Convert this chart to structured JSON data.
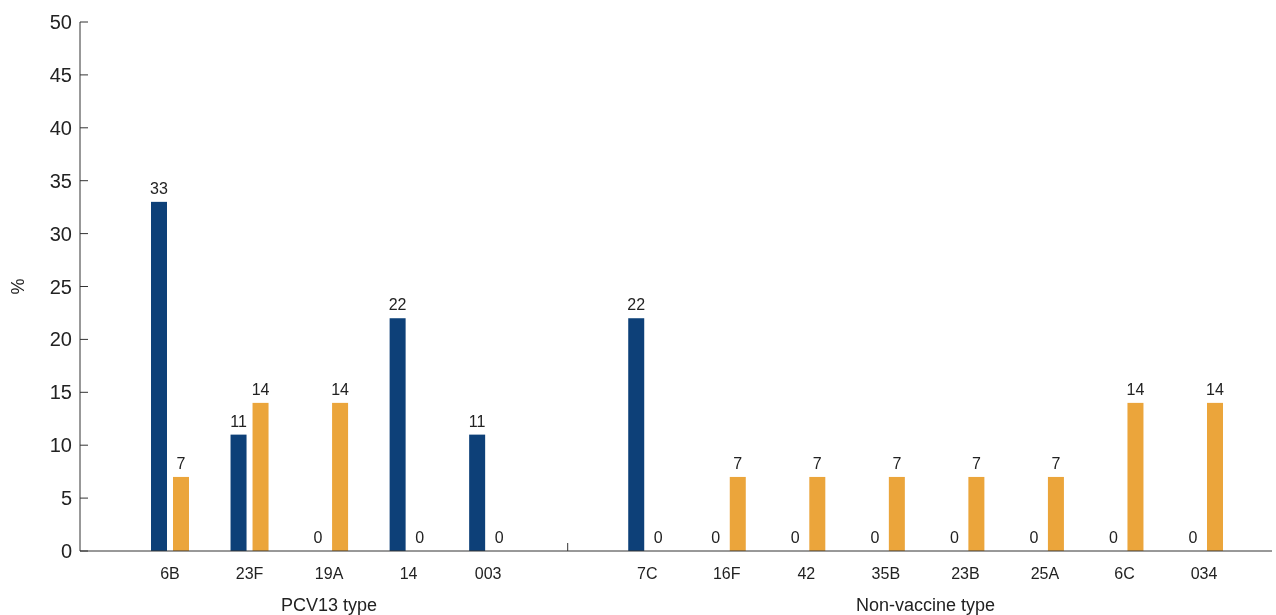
{
  "chart_data": {
    "type": "bar",
    "ylabel": "%",
    "categories": [
      "6B",
      "23F",
      "19A",
      "14",
      "003",
      null,
      "7C",
      "16F",
      "42",
      "35B",
      "23B",
      "25A",
      "6C",
      "034"
    ],
    "series": [
      {
        "color": "#0d4078",
        "values": [
          33,
          11,
          0,
          22,
          11,
          null,
          22,
          0,
          0,
          0,
          0,
          0,
          0,
          0
        ]
      },
      {
        "color": "#eba53b",
        "values": [
          7,
          14,
          14,
          0,
          0,
          null,
          0,
          7,
          7,
          7,
          7,
          7,
          14,
          14
        ]
      }
    ],
    "ylim": [
      0,
      50
    ],
    "yticks": [
      0,
      5,
      10,
      15,
      20,
      25,
      30,
      35,
      40,
      45,
      50
    ],
    "data_labels": true,
    "grid": false,
    "annotations": [
      "PCV13 type",
      "Non-vaccine type"
    ]
  }
}
